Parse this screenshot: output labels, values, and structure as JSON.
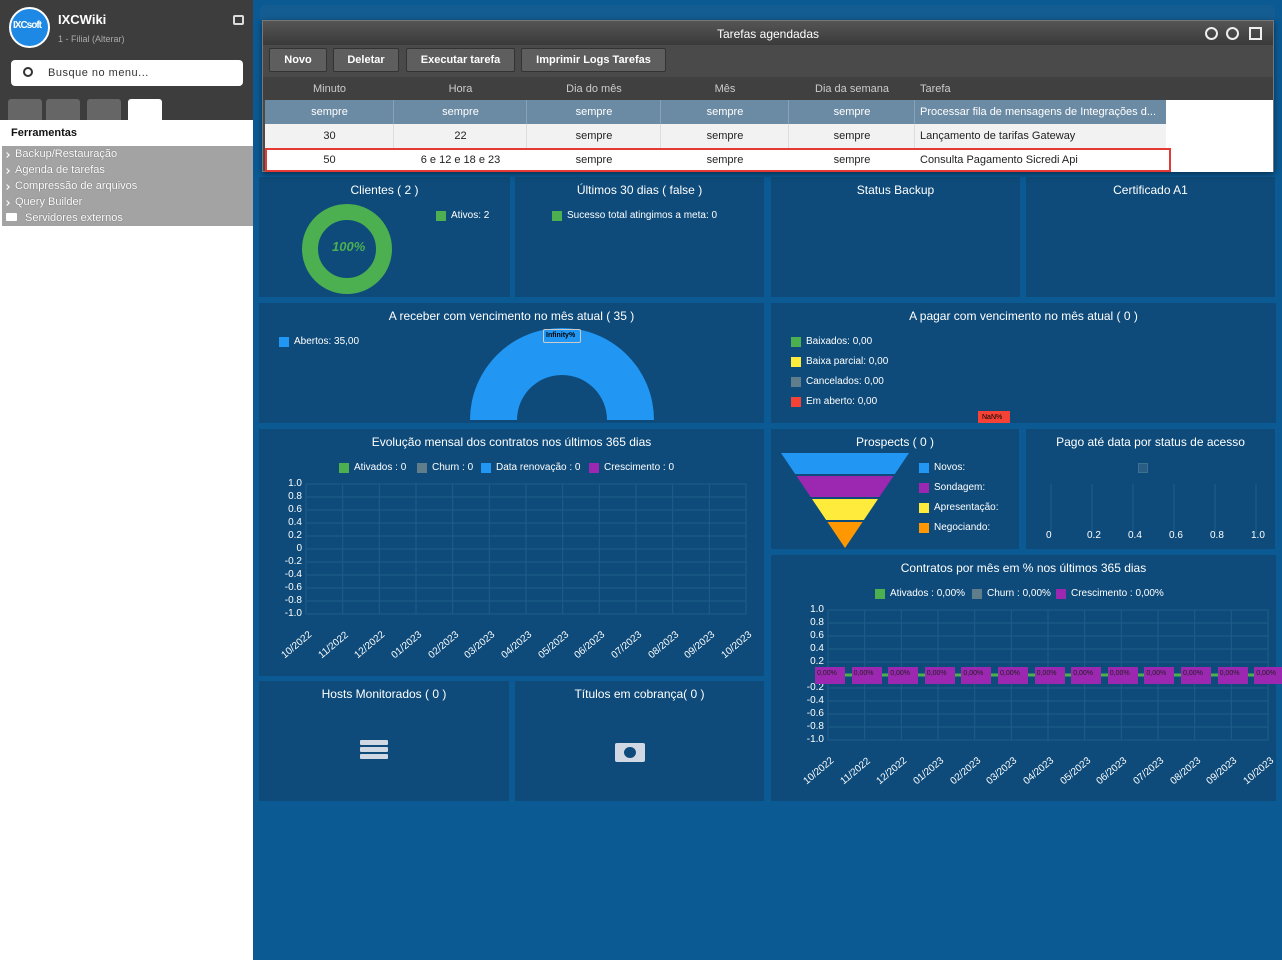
{
  "sidebar": {
    "logo": "IXCsoft",
    "brand": "IXCWiki",
    "branch": "1 - Filial (Alterar)",
    "search": "Busque no menu...",
    "section": "Ferramentas",
    "items": [
      "Backup/Restauração",
      "Agenda de tarefas",
      "Compressão de arquivos",
      "Query Builder",
      "Servidores externos"
    ]
  },
  "modal": {
    "title": "Tarefas agendadas",
    "buttons": [
      "Novo",
      "Deletar",
      "Executar tarefa",
      "Imprimir Logs Tarefas"
    ],
    "columns": [
      "Minuto",
      "Hora",
      "Dia do mês",
      "Mês",
      "Dia da semana",
      "Tarefa"
    ],
    "rows": [
      [
        "sempre",
        "sempre",
        "sempre",
        "sempre",
        "sempre",
        "Processar fila de mensagens de Integrações d..."
      ],
      [
        "30",
        "22",
        "sempre",
        "sempre",
        "sempre",
        "Lançamento de tarifas Gateway"
      ],
      [
        "50",
        "6 e 12 e 18 e 23",
        "sempre",
        "sempre",
        "sempre",
        "Consulta Pagamento Sicredi Api"
      ]
    ]
  },
  "dashboard": {
    "months": [
      "10/2022",
      "11/2022",
      "12/2022",
      "01/2023",
      "02/2023",
      "03/2023",
      "04/2023",
      "05/2023",
      "06/2023",
      "07/2023",
      "08/2023",
      "09/2023",
      "10/2023"
    ],
    "yticks": [
      "1.0",
      "0.8",
      "0.6",
      "0.4",
      "0.2",
      "0",
      "-0.2",
      "-0.4",
      "-0.6",
      "-0.8",
      "-1.0"
    ],
    "panels": [
      {
        "title": "Clientes ( 2 )",
        "legend": [
          "Ativos: 2"
        ],
        "label": "100%"
      },
      {
        "title": "Últimos 30 dias ( false )",
        "legend": [
          "Sucesso total atingimos a meta: 0"
        ]
      },
      {
        "title": "Status Backup"
      },
      {
        "title": "Certificado A1"
      },
      {
        "title": "A receber com vencimento no mês atual ( 35 )",
        "legend": [
          "Abertos: 35,00"
        ],
        "label": "Infinity%"
      },
      {
        "title": "A pagar com vencimento no mês atual ( 0 )",
        "legend": [
          "Baixados: 0,00",
          "Baixa parcial: 0,00",
          "Cancelados: 0,00",
          "Em aberto: 0,00"
        ],
        "label": "NaN%"
      },
      {
        "title": "Evolução mensal dos contratos nos últimos 365 dias",
        "legend": [
          "Ativados : 0",
          "Churn : 0",
          "Data renovação : 0",
          "Crescimento : 0"
        ]
      },
      {
        "title": "Prospects ( 0 )",
        "legend": [
          "Novos:",
          "Sondagem:",
          "Apresentação:",
          "Negociando:"
        ]
      },
      {
        "title": "Pago até data por status de acesso",
        "xticks": [
          "0",
          "0.2",
          "0.4",
          "0.6",
          "0.8",
          "1.0"
        ]
      },
      {
        "title": "Contratos por mês em % nos últimos 365 dias",
        "legend": [
          "Ativados : 0,00%",
          "Churn : 0,00%",
          "Crescimento : 0,00%"
        ],
        "bar_labels": [
          "0,00%",
          "0,00%",
          "0,00%",
          "0,00%",
          "0,00%",
          "0,00%",
          "0,00%",
          "0,00%",
          "0,00%",
          "0,00%",
          "0,00%",
          "0,00%",
          "0,00%"
        ]
      },
      {
        "title": "Hosts Monitorados ( 0 )"
      },
      {
        "title": "Títulos em cobrança( 0 )"
      }
    ]
  }
}
